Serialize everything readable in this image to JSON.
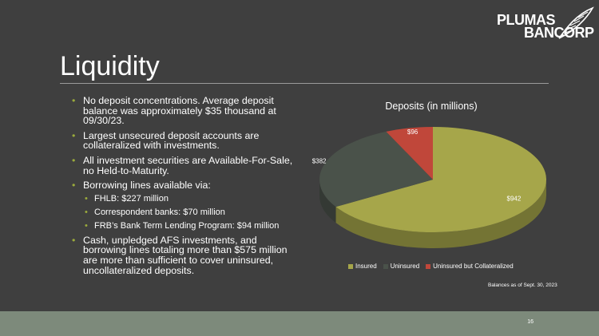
{
  "logo": {
    "line1": "PLUMAS",
    "line2": "BANCORP"
  },
  "title": "Liquidity",
  "bullets": [
    {
      "text": "No deposit concentrations. Average deposit balance was approximately $35 thousand at 09/30/23."
    },
    {
      "text": "Largest unsecured deposit accounts are collateralized with investments."
    },
    {
      "text": "All investment securities are Available-For-Sale, no Held-to-Maturity."
    },
    {
      "text": "Borrowing lines available via:",
      "sub": [
        "FHLB: $227 million",
        "Correspondent banks: $70 million",
        "FRB’s Bank Term Lending Program: $94 million"
      ]
    },
    {
      "text": "Cash, unpledged AFS investments, and borrowing lines totaling more than $575 million are more than sufficient to cover uninsured, uncollateralized deposits."
    }
  ],
  "chart_data": {
    "type": "pie",
    "title": "Deposits (in millions)",
    "categories": [
      "Insured",
      "Uninsured",
      "Uninsured but Collateralized"
    ],
    "values": [
      942,
      382,
      96
    ],
    "data_labels": [
      "$942",
      "$382",
      "$96"
    ],
    "colors": [
      "#a6a64a",
      "#4a524a",
      "#c0473a"
    ],
    "legend": "bottom",
    "style": "3d"
  },
  "footnote": "Balances as of Sept. 30, 2023",
  "page_number": "16"
}
